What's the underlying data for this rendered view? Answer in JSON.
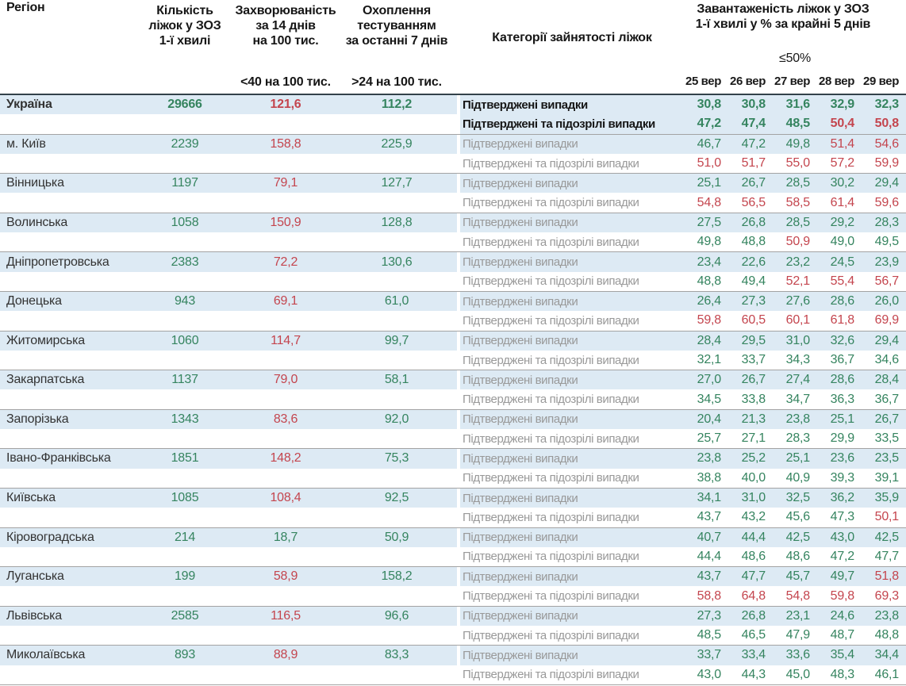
{
  "header": {
    "region_label": "Регіон",
    "beds_lines": [
      "Кількість",
      "ліжок у ЗОЗ",
      "1-ї хвилі"
    ],
    "incidence_lines": [
      "Захворюваність",
      "за 14 днів",
      "на 100 тис."
    ],
    "testing_lines": [
      "Охоплення",
      "тестуванням",
      "за останні 7 днів"
    ],
    "categories_label": "Категорії зайнятості ліжок",
    "occupancy_lines": [
      "Завантаженість ліжок у ЗОЗ",
      "1-ї хвилі у % за крайні 5 днів"
    ],
    "threshold_label": "≤50%",
    "incidence_norm": "<40 на 100 тис.",
    "testing_norm": ">24 на 100 тис.",
    "dates": [
      "25 вер",
      "26 вер",
      "27 вер",
      "28 вер",
      "29 вер"
    ]
  },
  "table": {
    "category_confirmed": "Підтверджені випадки",
    "category_confirmed_suspected": "Підтверджені та підозрілі випадки",
    "regions": [
      {
        "name": "Україна",
        "bold": true,
        "beds": "29666",
        "incidence": "121,6",
        "testing": "112,2",
        "confirmed": [
          "30,8",
          "30,8",
          "31,6",
          "32,9",
          "32,3"
        ],
        "confirmed_suspected": [
          "47,2",
          "47,4",
          "48,5",
          "50,4",
          "50,8"
        ]
      },
      {
        "name": "м. Київ",
        "beds": "2239",
        "incidence": "158,8",
        "testing": "225,9",
        "confirmed": [
          "46,7",
          "47,2",
          "49,8",
          "51,4",
          "54,6"
        ],
        "confirmed_suspected": [
          "51,0",
          "51,7",
          "55,0",
          "57,2",
          "59,9"
        ]
      },
      {
        "name": "Вінницька",
        "beds": "1197",
        "incidence": "79,1",
        "testing": "127,7",
        "confirmed": [
          "25,1",
          "26,7",
          "28,5",
          "30,2",
          "29,4"
        ],
        "confirmed_suspected": [
          "54,8",
          "56,5",
          "58,5",
          "61,4",
          "59,6"
        ]
      },
      {
        "name": "Волинська",
        "beds": "1058",
        "incidence": "150,9",
        "testing": "128,8",
        "confirmed": [
          "27,5",
          "26,8",
          "28,5",
          "29,2",
          "28,3"
        ],
        "confirmed_suspected": [
          "49,8",
          "48,8",
          "50,9",
          "49,0",
          "49,5"
        ]
      },
      {
        "name": "Дніпропетровська",
        "beds": "2383",
        "incidence": "72,2",
        "testing": "130,6",
        "confirmed": [
          "23,4",
          "22,6",
          "23,2",
          "24,5",
          "23,9"
        ],
        "confirmed_suspected": [
          "48,8",
          "49,4",
          "52,1",
          "55,4",
          "56,7"
        ]
      },
      {
        "name": "Донецька",
        "beds": "943",
        "incidence": "69,1",
        "testing": "61,0",
        "confirmed": [
          "26,4",
          "27,3",
          "27,6",
          "28,6",
          "26,0"
        ],
        "confirmed_suspected": [
          "59,8",
          "60,5",
          "60,1",
          "61,8",
          "69,9"
        ]
      },
      {
        "name": "Житомирська",
        "beds": "1060",
        "incidence": "114,7",
        "testing": "99,7",
        "confirmed": [
          "28,4",
          "29,5",
          "31,0",
          "32,6",
          "29,4"
        ],
        "confirmed_suspected": [
          "32,1",
          "33,7",
          "34,3",
          "36,7",
          "34,6"
        ]
      },
      {
        "name": "Закарпатська",
        "beds": "1137",
        "incidence": "79,0",
        "testing": "58,1",
        "confirmed": [
          "27,0",
          "26,7",
          "27,4",
          "28,6",
          "28,4"
        ],
        "confirmed_suspected": [
          "34,5",
          "33,8",
          "34,7",
          "36,3",
          "36,7"
        ]
      },
      {
        "name": "Запорізька",
        "beds": "1343",
        "incidence": "83,6",
        "testing": "92,0",
        "confirmed": [
          "20,4",
          "21,3",
          "23,8",
          "25,1",
          "26,7"
        ],
        "confirmed_suspected": [
          "25,7",
          "27,1",
          "28,3",
          "29,9",
          "33,5"
        ]
      },
      {
        "name": "Івано-Франківська",
        "beds": "1851",
        "incidence": "148,2",
        "testing": "75,3",
        "confirmed": [
          "23,8",
          "25,2",
          "25,1",
          "23,6",
          "23,5"
        ],
        "confirmed_suspected": [
          "38,8",
          "40,0",
          "40,9",
          "39,3",
          "39,1"
        ]
      },
      {
        "name": "Київська",
        "beds": "1085",
        "incidence": "108,4",
        "testing": "92,5",
        "confirmed": [
          "34,1",
          "31,0",
          "32,5",
          "36,2",
          "35,9"
        ],
        "confirmed_suspected": [
          "43,7",
          "43,2",
          "45,6",
          "47,3",
          "50,1"
        ]
      },
      {
        "name": "Кіровоградська",
        "beds": "214",
        "incidence": "18,7",
        "testing": "50,9",
        "confirmed": [
          "40,7",
          "44,4",
          "42,5",
          "43,0",
          "42,5"
        ],
        "confirmed_suspected": [
          "44,4",
          "48,6",
          "48,6",
          "47,2",
          "47,7"
        ]
      },
      {
        "name": "Луганська",
        "beds": "199",
        "incidence": "58,9",
        "testing": "158,2",
        "confirmed": [
          "43,7",
          "47,7",
          "45,7",
          "49,7",
          "51,8"
        ],
        "confirmed_suspected": [
          "58,8",
          "64,8",
          "54,8",
          "59,8",
          "69,3"
        ]
      },
      {
        "name": "Львівська",
        "beds": "2585",
        "incidence": "116,5",
        "testing": "96,6",
        "confirmed": [
          "27,3",
          "26,8",
          "23,1",
          "24,6",
          "23,8"
        ],
        "confirmed_suspected": [
          "48,5",
          "46,5",
          "47,9",
          "48,7",
          "48,8"
        ]
      },
      {
        "name": "Миколаївська",
        "beds": "893",
        "incidence": "88,9",
        "testing": "83,3",
        "confirmed": [
          "33,7",
          "33,4",
          "33,6",
          "35,4",
          "34,4"
        ],
        "confirmed_suspected": [
          "43,0",
          "44,3",
          "45,0",
          "48,3",
          "46,1"
        ]
      }
    ]
  },
  "thresholds": {
    "occupancy_red_above_percent": 50,
    "incidence_red_above_per_100k": 40,
    "testing_green_above_per_100k": 24
  },
  "colors": {
    "positive_green": "#35845f",
    "negative_red": "#c4454e",
    "row_highlight_blue": "#ddeaf4",
    "category_gray": "#999999",
    "header_rule_dark": "#33424a"
  }
}
